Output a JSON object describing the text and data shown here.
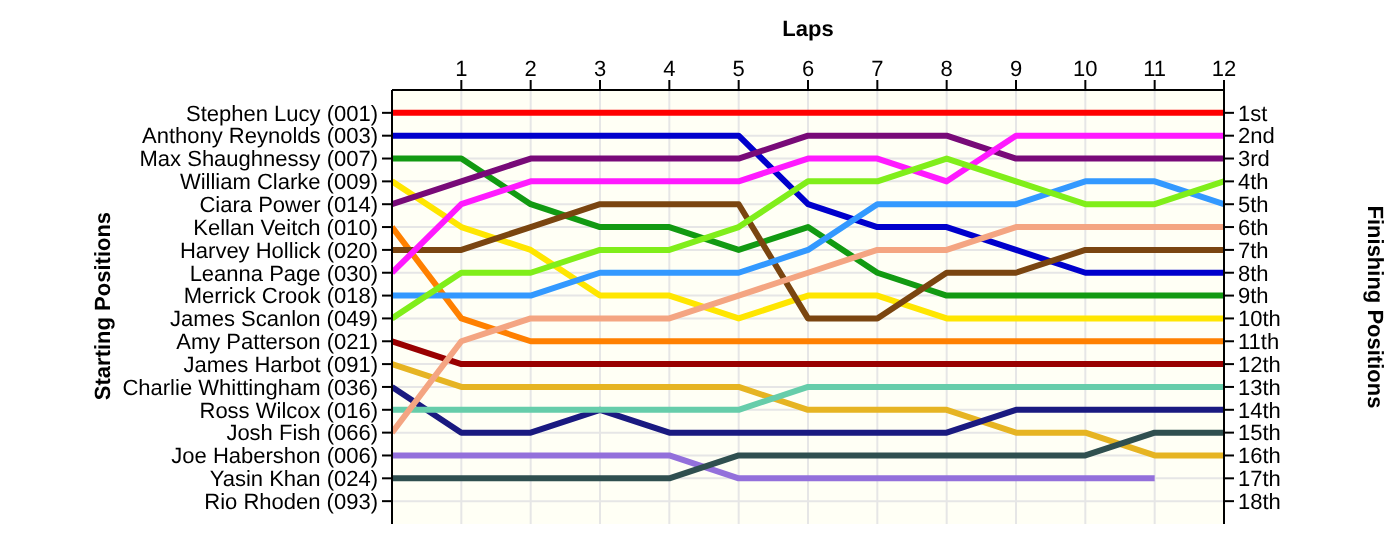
{
  "chart_data": {
    "type": "line",
    "xlabel": "Laps",
    "annotations": [
      "Starting Positions"
    ],
    "y2label": "Finishing Positions",
    "x": [
      0,
      1,
      2,
      3,
      4,
      5,
      6,
      7,
      8,
      9,
      10,
      11,
      12
    ],
    "xlim": [
      0,
      12
    ],
    "xticks": [
      1,
      2,
      3,
      4,
      5,
      6,
      7,
      8,
      9,
      10,
      11,
      12
    ],
    "y_categories": [
      "Stephen Lucy (001)",
      "Anthony Reynolds (003)",
      "Max Shaughnessy (007)",
      "William Clarke (009)",
      "Ciara Power (014)",
      "Kellan Veitch (010)",
      "Harvey Hollick (020)",
      "Leanna Page (030)",
      "Merrick Crook (018)",
      "James Scanlon (049)",
      "Amy Patterson (021)",
      "James Harbot (091)",
      "Charlie Whittingham (036)",
      "Ross Wilcox (016)",
      "Josh Fish (066)",
      "Joe Habershon (006)",
      "Yasin Khan (024)",
      "Rio Rhoden (093)"
    ],
    "y2lim": [
      19,
      0
    ],
    "y2ticks": [
      {
        "value": 1,
        "label": "1st"
      },
      {
        "value": 2,
        "label": "2nd"
      },
      {
        "value": 3,
        "label": "3rd"
      },
      {
        "value": 4,
        "label": "4th"
      },
      {
        "value": 5,
        "label": "5th"
      },
      {
        "value": 6,
        "label": "6th"
      },
      {
        "value": 7,
        "label": "7th"
      },
      {
        "value": 8,
        "label": "8th"
      },
      {
        "value": 9,
        "label": "9th"
      },
      {
        "value": 10,
        "label": "10th"
      },
      {
        "value": 11,
        "label": "11th"
      },
      {
        "value": 12,
        "label": "12th"
      },
      {
        "value": 13,
        "label": "13th"
      },
      {
        "value": 14,
        "label": "14th"
      },
      {
        "value": 15,
        "label": "15th"
      },
      {
        "value": 16,
        "label": "16th"
      },
      {
        "value": 17,
        "label": "17th"
      },
      {
        "value": 18,
        "label": "18th"
      }
    ],
    "grid": true,
    "series": [
      {
        "axis": "y2",
        "color": "#ff0000",
        "values": [
          1,
          1,
          1,
          1,
          1,
          1,
          1,
          1,
          1,
          1,
          1,
          1,
          1
        ]
      },
      {
        "axis": "y2",
        "color": "#0000cc",
        "values": [
          2,
          2,
          2,
          2,
          2,
          2,
          5,
          6,
          6,
          7,
          8,
          8,
          8
        ]
      },
      {
        "axis": "y2",
        "color": "#129a12",
        "values": [
          3,
          3,
          5,
          6,
          6,
          7,
          6,
          8,
          9,
          9,
          9,
          9,
          9
        ]
      },
      {
        "axis": "y2",
        "color": "#ffe600",
        "values": [
          4,
          6,
          7,
          9,
          9,
          10,
          9,
          9,
          10,
          10,
          10,
          10,
          10
        ]
      },
      {
        "axis": "y2",
        "color": "#780a78",
        "values": [
          5,
          4,
          3,
          3,
          3,
          3,
          2,
          2,
          2,
          3,
          3,
          3,
          3
        ]
      },
      {
        "axis": "y2",
        "color": "#ff8000",
        "values": [
          6,
          10,
          11,
          11,
          11,
          11,
          11,
          11,
          11,
          11,
          11,
          11,
          11
        ]
      },
      {
        "axis": "y2",
        "color": "#7a4510",
        "values": [
          7,
          7,
          6,
          5,
          5,
          5,
          10,
          10,
          8,
          8,
          7,
          7,
          7
        ]
      },
      {
        "axis": "y2",
        "color": "#ff1aff",
        "values": [
          8,
          5,
          4,
          4,
          4,
          4,
          3,
          3,
          4,
          2,
          2,
          2,
          2
        ]
      },
      {
        "axis": "y2",
        "color": "#3399ff",
        "values": [
          9,
          9,
          9,
          8,
          8,
          8,
          7,
          5,
          5,
          5,
          4,
          4,
          5
        ]
      },
      {
        "axis": "y2",
        "color": "#80ee1a",
        "values": [
          10,
          8,
          8,
          7,
          7,
          6,
          4,
          4,
          3,
          4,
          5,
          5,
          4
        ]
      },
      {
        "axis": "y2",
        "color": "#990000",
        "values": [
          11,
          12,
          12,
          12,
          12,
          12,
          12,
          12,
          12,
          12,
          12,
          12,
          12
        ]
      },
      {
        "axis": "y2",
        "color": "#e6b422",
        "values": [
          12,
          13,
          13,
          13,
          13,
          13,
          14,
          14,
          14,
          15,
          15,
          16,
          16
        ]
      },
      {
        "axis": "y2",
        "color": "#1a1a80",
        "values": [
          13,
          15,
          15,
          14,
          15,
          15,
          15,
          15,
          15,
          14,
          14,
          14,
          14
        ]
      },
      {
        "axis": "y2",
        "color": "#66cdaa",
        "values": [
          14,
          14,
          14,
          14,
          14,
          14,
          13,
          13,
          13,
          13,
          13,
          13,
          13
        ]
      },
      {
        "axis": "y2",
        "color": "#f4a582",
        "values": [
          15,
          11,
          10,
          10,
          10,
          9,
          8,
          7,
          7,
          6,
          6,
          6,
          6
        ]
      },
      {
        "axis": "y2",
        "color": "#9370db",
        "values": [
          16,
          16,
          16,
          16,
          16,
          17,
          17,
          17,
          17,
          17,
          17,
          17,
          null
        ]
      },
      {
        "axis": "y2",
        "color": "#2f4f4f",
        "values": [
          17,
          17,
          17,
          17,
          17,
          16,
          16,
          16,
          16,
          16,
          16,
          15,
          15
        ]
      }
    ]
  }
}
